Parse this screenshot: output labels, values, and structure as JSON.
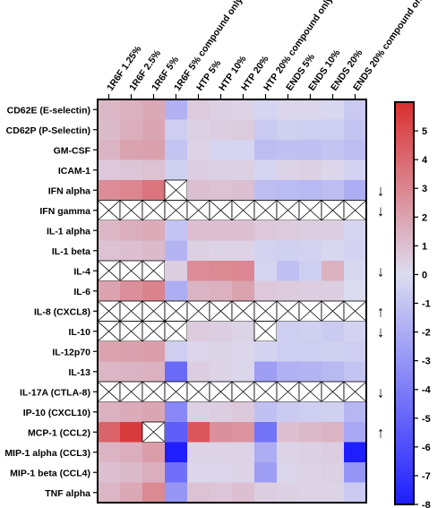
{
  "chart_data": {
    "type": "heatmap",
    "columns": [
      "1R6F 1.25%",
      "1R6F 2.5%",
      "1R6F 5%",
      "1R6F 5% compound only",
      "HTP 5%",
      "HTP 10%",
      "HTP 20%",
      "HTP 20% compound only",
      "ENDS 5%",
      "ENDS 10%",
      "ENDS 20%",
      "ENDS 20% compound only"
    ],
    "rows": [
      "CD62E (E-selectin)",
      "CD62P (P-Selectin)",
      "GM-CSF",
      "ICAM-1",
      "IFN alpha",
      "IFN gamma",
      "IL-1 alpha",
      "IL-1 beta",
      "IL-4",
      "IL-6",
      "IL-8 (CXCL8)",
      "IL-10",
      "IL-12p70",
      "IL-13",
      "IL-17A (CTLA-8)",
      "IP-10 (CXCL10)",
      "MCP-1 (CCL2)",
      "MIP-1 alpha (CCL3)",
      "MIP-1 beta (CCL4)",
      "TNF alpha"
    ],
    "values": [
      [
        1.3,
        1.5,
        1.8,
        -1.8,
        0.6,
        0.4,
        0.3,
        -0.3,
        0.2,
        0.2,
        -0.2,
        -0.8
      ],
      [
        1.2,
        1.6,
        1.9,
        -0.6,
        0.4,
        0.5,
        0.6,
        -0.8,
        -0.5,
        -0.6,
        -0.6,
        -1.0
      ],
      [
        1.4,
        2.0,
        2.1,
        -1.0,
        0.3,
        -0.3,
        -0.3,
        -1.3,
        -1.2,
        -1.2,
        -1.0,
        -1.3
      ],
      [
        0.7,
        0.8,
        0.9,
        -0.5,
        0.5,
        0.4,
        0.4,
        -0.3,
        0.3,
        0.4,
        0.2,
        -0.4
      ],
      [
        2.8,
        3.0,
        3.6,
        null,
        1.0,
        0.9,
        1.0,
        -1.3,
        -1.4,
        -1.5,
        -1.3,
        -2.0
      ],
      [
        null,
        null,
        null,
        null,
        null,
        null,
        null,
        null,
        null,
        null,
        null,
        null
      ],
      [
        1.3,
        1.6,
        1.7,
        -1.0,
        1.0,
        1.0,
        1.0,
        0.7,
        0.6,
        0.5,
        0.5,
        -0.3
      ],
      [
        0.9,
        1.0,
        1.2,
        -1.7,
        0.4,
        0.3,
        0.3,
        -0.4,
        -0.5,
        -0.4,
        -0.2,
        -0.4
      ],
      [
        null,
        null,
        null,
        0.5,
        2.8,
        2.9,
        3.0,
        -0.3,
        -1.2,
        -0.6,
        1.5,
        -0.2
      ],
      [
        2.0,
        2.7,
        3.1,
        -2.0,
        1.4,
        1.5,
        2.0,
        0.7,
        0.6,
        0.5,
        0.5,
        0.0
      ],
      [
        null,
        null,
        null,
        null,
        null,
        null,
        null,
        null,
        null,
        null,
        null,
        null
      ],
      [
        null,
        null,
        null,
        null,
        0.6,
        0.5,
        0.3,
        null,
        -0.6,
        -0.5,
        -0.7,
        -0.4
      ],
      [
        2.0,
        2.1,
        2.2,
        -0.6,
        0.2,
        0.3,
        0.2,
        -0.4,
        -0.6,
        -0.6,
        -0.5,
        -0.6
      ],
      [
        1.3,
        1.4,
        1.5,
        -4.8,
        0.5,
        0.3,
        0.2,
        -2.6,
        -1.8,
        -1.7,
        -1.5,
        -1.0
      ],
      [
        null,
        null,
        null,
        null,
        null,
        null,
        null,
        null,
        null,
        null,
        null,
        null
      ],
      [
        1.5,
        1.7,
        1.9,
        -3.6,
        0.4,
        0.5,
        0.7,
        -1.2,
        -0.7,
        -0.6,
        -0.5,
        -1.6
      ],
      [
        4.2,
        5.6,
        null,
        -5.3,
        4.6,
        2.7,
        2.5,
        -4.4,
        1.0,
        1.2,
        1.4,
        -2.2
      ],
      [
        1.4,
        1.6,
        2.2,
        -8.0,
        0.3,
        0.3,
        0.3,
        -2.0,
        0.3,
        0.4,
        0.5,
        -8.0
      ],
      [
        1.0,
        1.2,
        1.6,
        -4.6,
        0.2,
        0.2,
        0.3,
        -2.6,
        0.2,
        0.3,
        0.4,
        -3.0
      ],
      [
        1.3,
        1.8,
        2.9,
        -3.0,
        0.9,
        0.8,
        1.0,
        0.5,
        0.4,
        0.3,
        0.3,
        -0.8
      ]
    ],
    "missing_marker": "crossed box",
    "row_annotations": [
      "",
      "",
      "",
      "",
      "↓",
      "↓",
      "",
      "",
      "↓",
      "",
      "↑",
      "↓",
      "",
      "",
      "↓",
      "",
      "↑",
      "",
      "",
      ""
    ],
    "colorbar": {
      "min": -8,
      "max": 6,
      "ticks": [
        5,
        4,
        3,
        2,
        1,
        0,
        -1,
        -2,
        -3,
        -4,
        -5,
        -6,
        -7,
        -8
      ],
      "colors": {
        "low": "#1e1eff",
        "mid": "#dcdcf0",
        "high": "#d93030"
      }
    }
  }
}
